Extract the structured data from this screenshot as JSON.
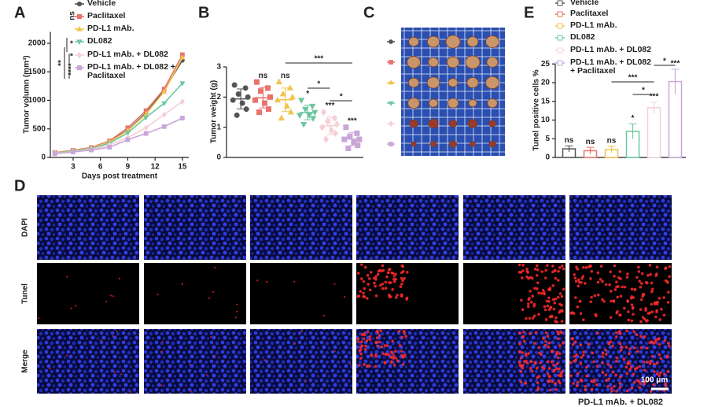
{
  "chart_data": [
    {
      "type": "line",
      "panel": "A",
      "y_label": "Tumor volumn (mm³)",
      "x_label": "Days post treatment",
      "x": [
        1,
        3,
        5,
        7,
        9,
        11,
        13,
        15
      ],
      "xlim": [
        0.5,
        15.7
      ],
      "xticks": [
        3,
        6,
        9,
        12,
        15
      ],
      "ylim": [
        0,
        2200
      ],
      "yticks": [
        0,
        500,
        1000,
        1500,
        2000
      ],
      "series": [
        {
          "name": "Vehicle",
          "color": "#555555",
          "marker": "circle",
          "values": [
            80,
            120,
            170,
            280,
            480,
            780,
            1180,
            1700
          ]
        },
        {
          "name": "Paclitaxel",
          "color": "#e8736c",
          "marker": "square",
          "values": [
            85,
            125,
            175,
            290,
            520,
            820,
            1200,
            1800
          ]
        },
        {
          "name": "PD-L1 mAb.",
          "color": "#f2c44f",
          "marker": "triangle-up",
          "values": [
            80,
            115,
            165,
            270,
            470,
            760,
            1150,
            1750
          ]
        },
        {
          "name": "DL082",
          "color": "#6cc7a0",
          "marker": "triangle-down",
          "values": [
            75,
            110,
            155,
            250,
            430,
            700,
            950,
            1300
          ]
        },
        {
          "name": "PD-L1 mAb. + DL082",
          "color": "#f4d0d8",
          "marker": "diamond",
          "values": [
            70,
            100,
            140,
            220,
            350,
            520,
            750,
            980
          ]
        },
        {
          "name": "PD-L1 mAb. + DL082 + Paclitaxel",
          "color": "#c9a6d8",
          "marker": "square",
          "values": [
            65,
            95,
            130,
            180,
            310,
            420,
            540,
            690
          ]
        }
      ],
      "annotations": [
        "ns",
        "*",
        "**",
        "*",
        "****"
      ]
    },
    {
      "type": "dot",
      "panel": "B",
      "y_label": "Tumor weight (g)",
      "ylim": [
        0,
        3
      ],
      "yticks": [
        0,
        1,
        2,
        3
      ],
      "colors": [
        "#555555",
        "#e8736c",
        "#f2c44f",
        "#6cc7a0",
        "#f4d0d8",
        "#c9a6d8"
      ],
      "markers": [
        "circle",
        "square",
        "triangle-up",
        "triangle-down",
        "diamond",
        "square"
      ],
      "points": [
        [
          2.4,
          2.3,
          2.1,
          2.0,
          1.9,
          1.8,
          1.6,
          1.4
        ],
        [
          2.5,
          2.3,
          2.2,
          2.0,
          1.9,
          1.8,
          1.6,
          1.5
        ],
        [
          2.5,
          2.3,
          2.1,
          2.0,
          1.9,
          1.7,
          1.5,
          1.3
        ],
        [
          1.9,
          1.7,
          1.6,
          1.5,
          1.4,
          1.4,
          1.3,
          1.1
        ],
        [
          1.5,
          1.3,
          1.2,
          1.1,
          1.0,
          0.9,
          0.8,
          0.6
        ],
        [
          1.0,
          0.8,
          0.7,
          0.6,
          0.6,
          0.5,
          0.4,
          0.3
        ]
      ],
      "means": [
        1.94,
        1.98,
        1.91,
        1.49,
        1.05,
        0.61
      ],
      "sd": [
        0.33,
        0.34,
        0.39,
        0.24,
        0.29,
        0.22
      ],
      "sig_labels": [
        null,
        "ns",
        "ns",
        "*",
        "***",
        "***"
      ],
      "brackets": [
        "***",
        "*",
        "*"
      ]
    },
    {
      "type": "bar",
      "panel": "E",
      "y_label": "Tunel positive cells %",
      "categories": [
        "Vehicle",
        "Paclitaxel",
        "PD-L1 mAb.",
        "DL082",
        "PD-L1 mAb. + DL082",
        "PD-L1 mAb. + DL082 + Paclitaxel"
      ],
      "colors": [
        "#555555",
        "#e8736c",
        "#f2c44f",
        "#6cc7a0",
        "#f4d0d8",
        "#c9a6d8"
      ],
      "values": [
        2.3,
        1.8,
        2.1,
        7.0,
        13.3,
        20.3
      ],
      "errors": [
        0.8,
        0.9,
        0.9,
        2.0,
        1.5,
        3.3
      ],
      "ylim": [
        0,
        25
      ],
      "yticks": [
        0,
        5,
        10,
        15,
        20,
        25
      ],
      "sig_labels": [
        "ns",
        "ns",
        "ns",
        "*",
        "***",
        "***"
      ],
      "brackets": [
        "***",
        "*",
        "*"
      ]
    }
  ],
  "panel_c": {
    "label": "C"
  },
  "panel_d": {
    "label": "D",
    "rows": [
      "DAPI",
      "Tunel",
      "Merge"
    ],
    "column_label": "PD-L1 mAb. + DL082",
    "scale_bar": "100 μm"
  }
}
